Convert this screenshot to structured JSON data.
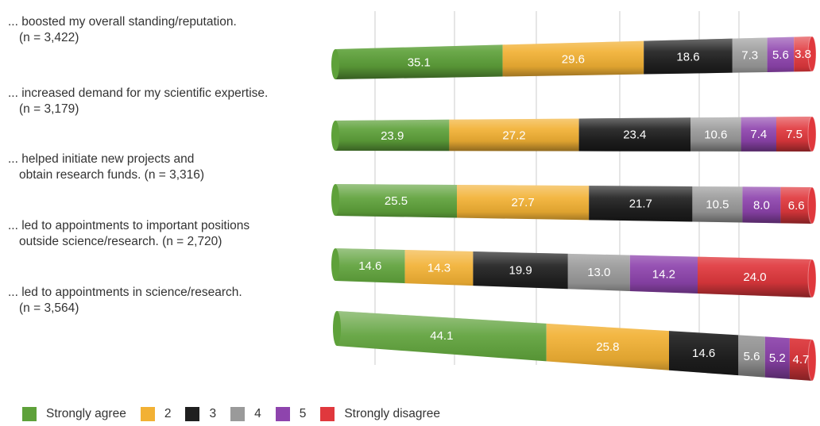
{
  "chart_data": {
    "type": "bar",
    "stacked": true,
    "orientation": "horizontal",
    "categories": [
      "... boosted my overall standing/reputation. (n = 3,422)",
      "... increased demand for my scientific expertise. (n = 3,179)",
      "... helped initiate new projects and obtain research funds. (n = 3,316)",
      "... led to appointments to important positions outside science/research. (n = 2,720)",
      "... led to appointments in science/research. (n = 3,564)"
    ],
    "category_lines": [
      [
        "... boosted my overall standing/reputation.",
        "(n = 3,422)"
      ],
      [
        "... increased demand for my scientific expertise.",
        "(n = 3,179)"
      ],
      [
        "... helped initiate new projects and",
        "obtain research funds.   (n = 3,316)"
      ],
      [
        "... led to appointments to important positions",
        "outside science/research. (n = 2,720)"
      ],
      [
        "... led to appointments in science/research.",
        "(n = 3,564)"
      ]
    ],
    "series": [
      {
        "name": "Strongly agree",
        "color": "#5ea13a",
        "values": [
          35.1,
          23.9,
          25.5,
          14.6,
          44.1
        ]
      },
      {
        "name": "2",
        "color": "#f2b134",
        "values": [
          29.6,
          27.2,
          27.7,
          14.3,
          25.8
        ]
      },
      {
        "name": "3",
        "color": "#1f1f1f",
        "values": [
          18.6,
          23.4,
          21.7,
          19.9,
          14.6
        ]
      },
      {
        "name": "4",
        "color": "#9a9a9a",
        "values": [
          7.3,
          10.6,
          10.5,
          13.0,
          5.6
        ]
      },
      {
        "name": "5",
        "color": "#8e44ad",
        "values": [
          5.6,
          7.4,
          8.0,
          14.2,
          5.2
        ]
      },
      {
        "name": "Strongly disagree",
        "color": "#e0383d",
        "values": [
          3.8,
          7.5,
          6.6,
          24.0,
          4.7
        ]
      }
    ],
    "legend_position": "bottom",
    "grid": true,
    "xlim": [
      0,
      100
    ]
  }
}
